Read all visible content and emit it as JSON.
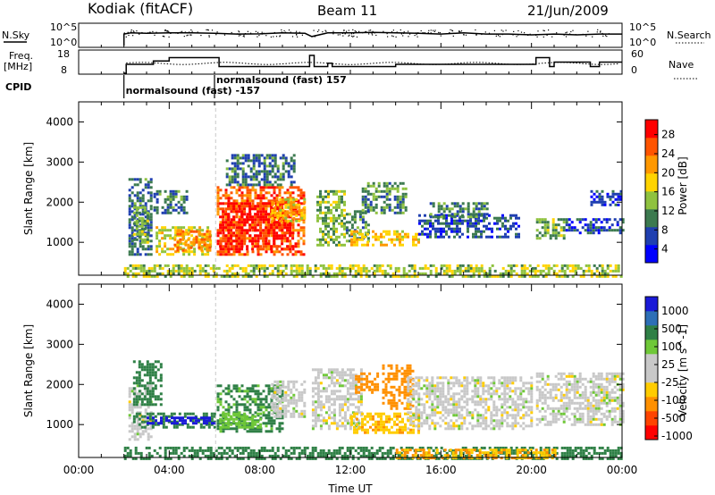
{
  "header": {
    "station": "Kodiak (fitACF)",
    "beam": "Beam 11",
    "date": "21/Jun/2009"
  },
  "colors": {
    "background": "#ffffff",
    "axis": "#000000",
    "power_scale": [
      "#0000ff",
      "#1f3fb0",
      "#3c7a4f",
      "#8fc23f",
      "#ffd400",
      "#ff9800",
      "#ff5400",
      "#ff0000"
    ],
    "velocity_scale": [
      "#1a1ad8",
      "#2d6fb6",
      "#2f8046",
      "#6fc838",
      "#c8c8c8",
      "#c8c8c8",
      "#ffcc00",
      "#ff9000",
      "#ff4400",
      "#ff0000"
    ]
  },
  "chart_data": [
    {
      "type": "line",
      "panel": "noise",
      "left_label": "N.Sky",
      "right_label": "N.Search",
      "left_ticks": [
        "10^5",
        "10^0"
      ],
      "right_ticks": [
        "10^5",
        "10^0"
      ],
      "xlim_hours": [
        0,
        24
      ],
      "series": [
        {
          "x_hours": [
            2.0,
            2.3,
            3.0,
            4.0,
            5.0,
            6.0,
            7.0,
            8.0,
            9.0,
            10.0,
            10.3,
            11.0,
            12.0,
            13.0,
            14.0,
            15.0,
            16.0,
            17.0,
            18.0,
            19.0,
            20.0,
            21.0,
            22.0,
            23.0,
            24.0
          ],
          "level": [
            0.55,
            0.6,
            0.58,
            0.6,
            0.6,
            0.58,
            0.55,
            0.56,
            0.6,
            0.58,
            0.45,
            0.6,
            0.6,
            0.62,
            0.6,
            0.58,
            0.55,
            0.6,
            0.55,
            0.55,
            0.52,
            0.55,
            0.52,
            0.55,
            0.55
          ]
        }
      ]
    },
    {
      "type": "line",
      "panel": "frequency",
      "left_label": "Freq.",
      "left_unit": "[MHz]",
      "left_ticks": [
        18,
        8
      ],
      "right_label": "Nave",
      "right_ticks": [
        60,
        0
      ],
      "xlim_hours": [
        0,
        24
      ],
      "series": [
        {
          "x_hours": [
            2.0,
            2.1,
            3.0,
            3.3,
            4.0,
            6.0,
            6.2,
            10.0,
            10.2,
            10.4,
            11.0,
            11.2,
            13.5,
            14.0,
            20.0,
            20.2,
            20.8,
            21.0,
            22.5,
            22.6,
            23.0,
            24.0
          ],
          "freq_mhz": [
            8,
            12,
            12,
            13.5,
            15,
            15,
            11,
            11,
            16,
            11,
            12.5,
            11,
            11,
            12,
            12,
            15,
            11,
            13,
            13,
            11,
            13,
            13
          ]
        }
      ]
    },
    {
      "type": "text",
      "panel": "cpid",
      "label": "CPID",
      "entries": [
        {
          "start_hours": 2.0,
          "text": "normalsound (fast) -157"
        },
        {
          "start_hours": 6.0,
          "text": "normalsound (fast) 157"
        }
      ]
    },
    {
      "type": "heatmap",
      "panel": "power",
      "ylabel": "Slant Range [km]",
      "ylim": [
        180,
        4500
      ],
      "yticks": [
        1000,
        2000,
        3000,
        4000
      ],
      "xlim_hours": [
        0,
        24
      ],
      "colorbar": {
        "label": "Power [dB]",
        "ticks": [
          4,
          8,
          12,
          16,
          20,
          24,
          28
        ],
        "range": [
          0,
          30
        ]
      },
      "regions": [
        {
          "t0": 2.2,
          "t1": 3.2,
          "r0": 700,
          "r1": 2600,
          "value": 8
        },
        {
          "t0": 2.4,
          "t1": 3.0,
          "r0": 1000,
          "r1": 1900,
          "value": 12
        },
        {
          "t0": 3.4,
          "t1": 5.8,
          "r0": 700,
          "r1": 1400,
          "value": 16
        },
        {
          "t0": 4.2,
          "t1": 5.8,
          "r0": 800,
          "r1": 1300,
          "value": 22
        },
        {
          "t0": 3.3,
          "t1": 4.8,
          "r0": 1700,
          "r1": 2300,
          "value": 8
        },
        {
          "t0": 6.1,
          "t1": 10.0,
          "r0": 700,
          "r1": 2400,
          "value": 24
        },
        {
          "t0": 6.2,
          "t1": 9.5,
          "r0": 800,
          "r1": 2000,
          "value": 28
        },
        {
          "t0": 8.5,
          "t1": 10.0,
          "r0": 1500,
          "r1": 2100,
          "value": 18
        },
        {
          "t0": 6.5,
          "t1": 9.5,
          "r0": 2400,
          "r1": 3200,
          "value": 8
        },
        {
          "t0": 10.5,
          "t1": 11.7,
          "r0": 900,
          "r1": 2300,
          "value": 12
        },
        {
          "t0": 11.8,
          "t1": 12.8,
          "r0": 1000,
          "r1": 1800,
          "value": 10
        },
        {
          "t0": 12.0,
          "t1": 15.0,
          "r0": 900,
          "r1": 1300,
          "value": 18
        },
        {
          "t0": 12.5,
          "t1": 14.5,
          "r0": 1700,
          "r1": 2500,
          "value": 10
        },
        {
          "t0": 15.0,
          "t1": 19.5,
          "r0": 1100,
          "r1": 1700,
          "value": 6
        },
        {
          "t0": 15.5,
          "t1": 18.0,
          "r0": 1600,
          "r1": 2000,
          "value": 10
        },
        {
          "t0": 20.2,
          "t1": 21.5,
          "r0": 1100,
          "r1": 1600,
          "value": 12
        },
        {
          "t0": 21.5,
          "t1": 24.0,
          "r0": 1200,
          "r1": 1600,
          "value": 6
        },
        {
          "t0": 22.6,
          "t1": 24.0,
          "r0": 1900,
          "r1": 2300,
          "value": 5
        },
        {
          "t0": 2.0,
          "t1": 24.0,
          "r0": 180,
          "r1": 450,
          "value": 14
        }
      ]
    },
    {
      "type": "heatmap",
      "panel": "velocity",
      "ylabel": "Slant Range [km]",
      "ylim": [
        180,
        4500
      ],
      "yticks": [
        1000,
        2000,
        3000,
        4000
      ],
      "xlabel": "Time UT",
      "xticks": [
        "00:00",
        "04:00",
        "08:00",
        "12:00",
        "16:00",
        "20:00",
        "00:00"
      ],
      "xlim_hours": [
        0,
        24
      ],
      "colorbar": {
        "label": "Velocity [m s^-1]",
        "ticks": [
          1000,
          500,
          100,
          25,
          -25,
          -100,
          -500,
          -1000
        ]
      },
      "regions": [
        {
          "t0": 2.2,
          "t1": 3.2,
          "r0": 600,
          "r1": 2000,
          "value": 0
        },
        {
          "t0": 2.4,
          "t1": 6.0,
          "r0": 900,
          "r1": 1300,
          "value": 150
        },
        {
          "t0": 3.0,
          "t1": 6.0,
          "r0": 1000,
          "r1": 1200,
          "value": 600
        },
        {
          "t0": 2.4,
          "t1": 3.6,
          "r0": 1500,
          "r1": 2600,
          "value": 200
        },
        {
          "t0": 6.1,
          "t1": 9.0,
          "r0": 800,
          "r1": 2000,
          "value": 120
        },
        {
          "t0": 6.2,
          "t1": 8.0,
          "r0": 900,
          "r1": 1300,
          "value": 60
        },
        {
          "t0": 8.5,
          "t1": 10.0,
          "r0": 1200,
          "r1": 2100,
          "value": 0
        },
        {
          "t0": 10.3,
          "t1": 12.5,
          "r0": 900,
          "r1": 2400,
          "value": 0
        },
        {
          "t0": 12.0,
          "t1": 15.0,
          "r0": 800,
          "r1": 1300,
          "value": -80
        },
        {
          "t0": 13.4,
          "t1": 14.8,
          "r0": 1400,
          "r1": 2500,
          "value": -300
        },
        {
          "t0": 12.2,
          "t1": 13.2,
          "r0": 1800,
          "r1": 2300,
          "value": -300
        },
        {
          "t0": 14.5,
          "t1": 20.0,
          "r0": 900,
          "r1": 2200,
          "value": 0
        },
        {
          "t0": 20.2,
          "t1": 24.0,
          "r0": 1000,
          "r1": 2300,
          "value": 0
        },
        {
          "t0": 2.0,
          "t1": 24.0,
          "r0": 180,
          "r1": 450,
          "value": 150
        },
        {
          "t0": 14.0,
          "t1": 21.0,
          "r0": 180,
          "r1": 400,
          "value": -100
        }
      ]
    }
  ]
}
